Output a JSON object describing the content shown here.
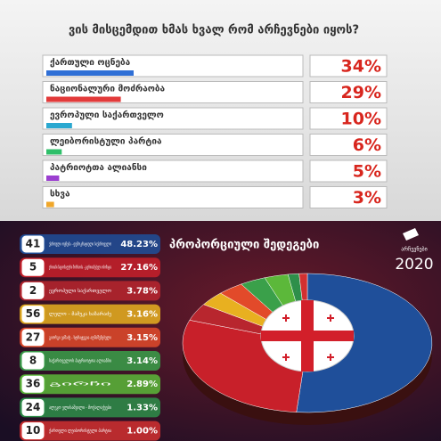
{
  "chart_data": [
    {
      "type": "bar",
      "title": "ვის მისცემდით ხმას ხვალ რომ არჩევნები იყოს?",
      "categories": [
        "ქართული ოცნება",
        "ნაციონალური მოძრაობა",
        "ევროპული საქართველო",
        "ლეიბორისტული პარტია",
        "პატრიოტთა ალიანსი",
        "სხვა"
      ],
      "values": [
        34,
        29,
        10,
        6,
        5,
        3
      ],
      "value_labels": [
        "34%",
        "29%",
        "10%",
        "6%",
        "5%",
        "3%"
      ],
      "colors": [
        "#2f6fd6",
        "#e23a3a",
        "#2aa8d0",
        "#2fbf6a",
        "#9b3fd0",
        "#f0a72a"
      ]
    },
    {
      "type": "pie",
      "title": "პროპორციული შედეგები",
      "categories": [
        "ქართული ოცნება - დემოკრატიული საქართველო",
        "ერთიანი ნაციონალური მოძრაობა - გაერთიანებული ოპოზიცია",
        "ევროპული საქართველო",
        "ლელო - მამუკა ხაზარაძე",
        "გიორგი ვაშაძე - სტრატეგია აღმაშენებელი",
        "საქართველოს პატრიოტთა ალიანსი",
        "გირჩი",
        "ალეკო ელისაშვილი - მოქალაქეები",
        "ქართული ლეიბორისტული პარტია"
      ],
      "ballot_numbers": [
        "41",
        "5",
        "2",
        "56",
        "27",
        "8",
        "36",
        "24",
        "10"
      ],
      "values": [
        48.23,
        27.16,
        3.78,
        3.16,
        3.15,
        3.14,
        2.89,
        1.33,
        1.0
      ],
      "value_labels": [
        "48.23%",
        "27.16%",
        "3.78%",
        "3.16%",
        "3.15%",
        "3.14%",
        "2.89%",
        "1.33%",
        "1.00%"
      ],
      "colors": [
        "#1f4f9a",
        "#c8202a",
        "#b8262e",
        "#e8b020",
        "#e24a2a",
        "#3aa04a",
        "#5cb83a",
        "#2e8f4a",
        "#d23030"
      ]
    }
  ],
  "logo": {
    "text": "არჩევნები",
    "year": "2020"
  }
}
